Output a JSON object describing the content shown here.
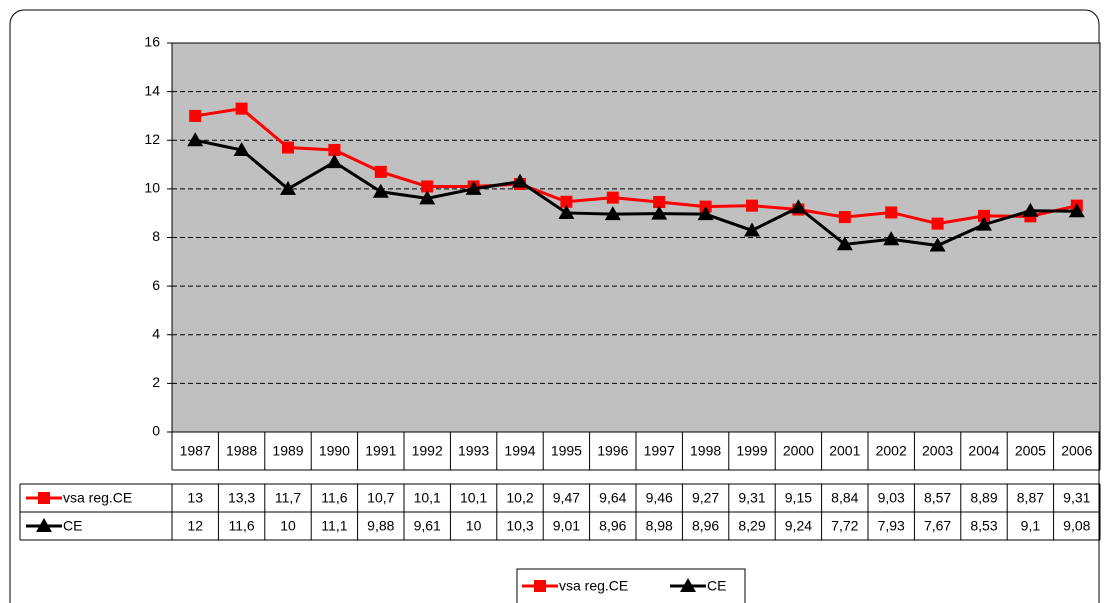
{
  "chart_data": {
    "type": "line",
    "categories": [
      "1987",
      "1988",
      "1989",
      "1990",
      "1991",
      "1992",
      "1993",
      "1994",
      "1995",
      "1996",
      "1997",
      "1998",
      "1999",
      "2000",
      "2001",
      "2002",
      "2003",
      "2004",
      "2005",
      "2006"
    ],
    "series": [
      {
        "name": "vsa reg.CE",
        "color": "#ff0000",
        "marker": "square",
        "values": [
          13,
          13.3,
          11.7,
          11.6,
          10.7,
          10.1,
          10.1,
          10.2,
          9.47,
          9.64,
          9.46,
          9.27,
          9.31,
          9.15,
          8.84,
          9.03,
          8.57,
          8.89,
          8.87,
          9.31
        ],
        "value_labels": [
          "13",
          "13,3",
          "11,7",
          "11,6",
          "10,7",
          "10,1",
          "10,1",
          "10,2",
          "9,47",
          "9,64",
          "9,46",
          "9,27",
          "9,31",
          "9,15",
          "8,84",
          "9,03",
          "8,57",
          "8,89",
          "8,87",
          "9,31"
        ]
      },
      {
        "name": "CE",
        "color": "#000000",
        "marker": "triangle",
        "values": [
          12,
          11.6,
          10,
          11.1,
          9.88,
          9.61,
          10,
          10.3,
          9.01,
          8.96,
          8.98,
          8.96,
          8.29,
          9.24,
          7.72,
          7.93,
          7.67,
          8.53,
          9.1,
          9.08
        ],
        "value_labels": [
          "12",
          "11,6",
          "10",
          "11,1",
          "9,88",
          "9,61",
          "10",
          "10,3",
          "9,01",
          "8,96",
          "8,98",
          "8,96",
          "8,29",
          "9,24",
          "7,72",
          "7,93",
          "7,67",
          "8,53",
          "9,1",
          "9,08"
        ]
      }
    ],
    "ylim": [
      0,
      16
    ],
    "yticks": [
      0,
      2,
      4,
      6,
      8,
      10,
      12,
      14,
      16
    ],
    "grid": true,
    "legend": "bottom",
    "plot_background": "#c0c0c0"
  }
}
